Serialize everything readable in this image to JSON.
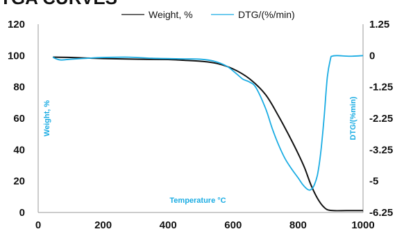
{
  "header": {
    "title_fragment": "TGA CURVES"
  },
  "chart_data": {
    "type": "line",
    "xlabel": "Temperature °C",
    "ylabel_left": "Weight, %",
    "ylabel_right": "DTG/(%min)",
    "x_ticks": [
      "0",
      "200",
      "400",
      "600",
      "800",
      "1000"
    ],
    "x_tick_values": [
      0,
      200,
      400,
      600,
      800,
      1000
    ],
    "y_left_ticks": [
      "0",
      "20",
      "40",
      "60",
      "80",
      "100",
      "120"
    ],
    "y_left_tick_values": [
      0,
      20,
      40,
      60,
      80,
      100,
      120
    ],
    "y_right_ticks": [
      "1.25",
      "0",
      "-1.25",
      "-2.25",
      "-3.25",
      "-5",
      "-6.25"
    ],
    "xlim": [
      0,
      1000
    ],
    "ylim_left": [
      0,
      120
    ],
    "legend": {
      "placement": "top"
    },
    "colors": {
      "weight": "#111111",
      "dtg": "#1aace3",
      "axis_label": "#1aace3",
      "axis": "#999999"
    },
    "series": [
      {
        "name": "Weight, %",
        "axis": "left",
        "color": "#111111",
        "x": [
          45,
          100,
          200,
          300,
          400,
          450,
          500,
          550,
          600,
          650,
          700,
          740,
          770,
          800,
          820,
          840,
          860,
          880,
          900,
          950,
          1000
        ],
        "y": [
          99,
          98.8,
          98.1,
          97.7,
          97.5,
          97,
          96.4,
          95,
          91.5,
          85.3,
          75.1,
          61.4,
          49.9,
          37.6,
          28.5,
          17.4,
          8.9,
          3.3,
          1.3,
          1.2,
          1.2
        ]
      },
      {
        "name": "DTG/(%/min)",
        "axis": "left_scaled",
        "color": "#1aace3",
        "x": [
          45,
          55,
          70,
          100,
          150,
          200,
          280,
          350,
          450,
          500,
          540,
          580,
          610,
          630,
          650,
          670,
          700,
          720,
          740,
          760,
          780,
          800,
          815,
          830,
          840,
          850,
          860,
          870,
          880,
          890,
          900,
          905,
          920,
          960,
          1000
        ],
        "y": [
          99,
          98,
          97.2,
          97.7,
          98.3,
          98.8,
          99,
          98.3,
          97.9,
          97.7,
          96.5,
          93.3,
          88.5,
          85,
          83.2,
          79.7,
          66.3,
          53.8,
          43.1,
          34.3,
          27.8,
          22.1,
          17.6,
          14.6,
          14.6,
          17.6,
          24.3,
          38.6,
          60.2,
          86.2,
          98.1,
          99.6,
          100,
          99.6,
          100
        ]
      }
    ]
  }
}
